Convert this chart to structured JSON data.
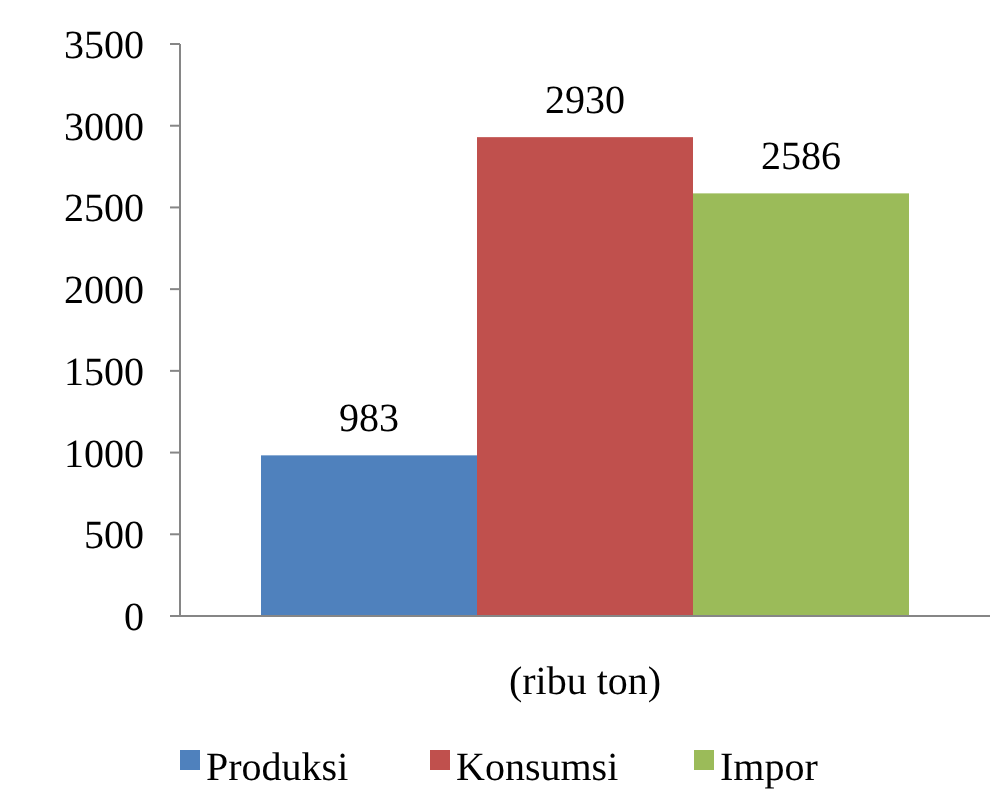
{
  "chart_data": {
    "type": "bar",
    "categories": [
      "(ribu ton)"
    ],
    "series": [
      {
        "name": "Produksi",
        "color": "#4f81bd",
        "values": [
          983
        ]
      },
      {
        "name": "Konsumsi",
        "color": "#c0504d",
        "values": [
          2930
        ]
      },
      {
        "name": "Impor",
        "color": "#9bbb59",
        "values": [
          2586
        ]
      }
    ],
    "ylim": [
      0,
      3500
    ],
    "yticks": [
      0,
      500,
      1000,
      1500,
      2000,
      2500,
      3000,
      3500
    ],
    "grid": false,
    "legend": "bottom",
    "data_labels": true
  }
}
